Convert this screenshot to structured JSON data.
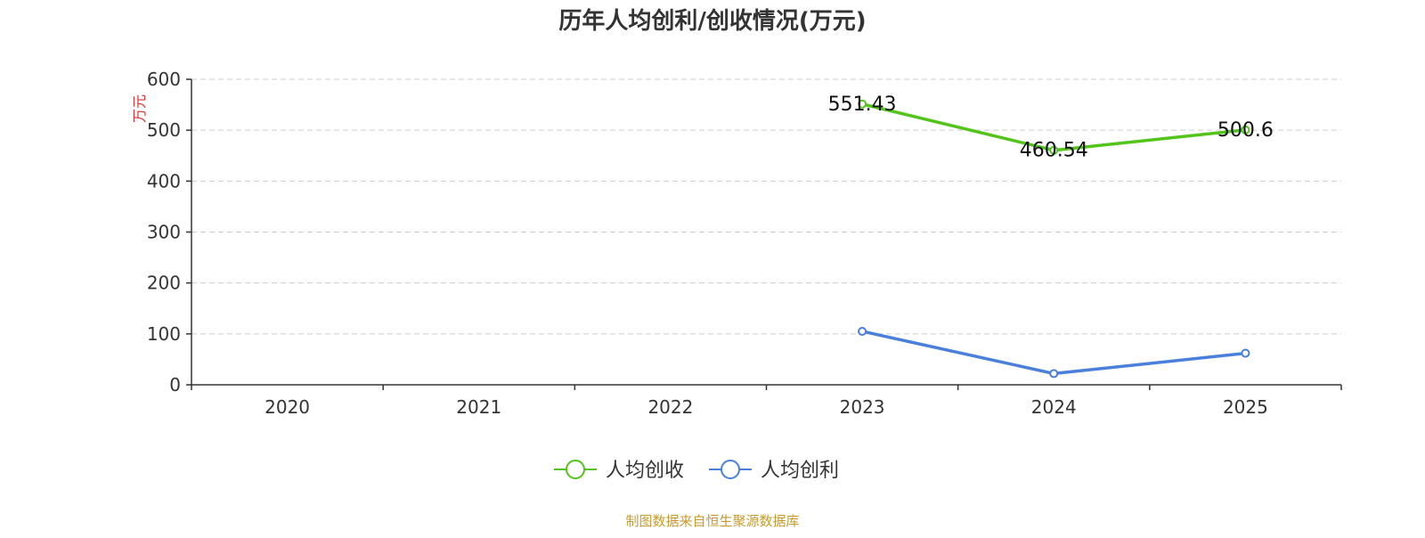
{
  "chart_data": {
    "type": "line",
    "title": "历年人均创利/创收情况(万元)",
    "ylabel": "万元",
    "categories": [
      "2020",
      "2021",
      "2022",
      "2023",
      "2024",
      "2025"
    ],
    "ylim": [
      0,
      600
    ],
    "yticks": [
      0,
      100,
      200,
      300,
      400,
      500,
      600
    ],
    "grid": true,
    "legend_position": "bottom-center",
    "series": [
      {
        "name": "人均创收",
        "color": "#52c41a",
        "values": [
          null,
          null,
          null,
          551.43,
          460.54,
          500.6
        ],
        "labels": [
          "",
          "",
          "",
          "551.43",
          "460.54",
          "500.6"
        ]
      },
      {
        "name": "人均创利",
        "color": "#4a7fdc",
        "values": [
          null,
          null,
          null,
          105,
          22,
          62
        ],
        "labels": [
          "",
          "",
          "",
          "",
          "",
          ""
        ]
      }
    ],
    "source": "制图数据来自恒生聚源数据库"
  },
  "colors": {
    "title": "#333333",
    "axis": "#333333",
    "grid": "#cccccc",
    "ylabel": "#e03030",
    "source": "#c89a2c"
  }
}
